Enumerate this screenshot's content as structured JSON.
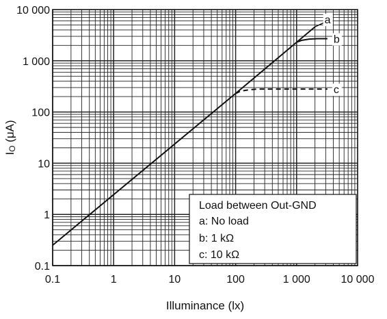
{
  "chart_data": {
    "type": "line",
    "xlabel": "Illuminance  (lx)",
    "ylabel_main": "I",
    "ylabel_sub": "O",
    "ylabel_unit": " (μA)",
    "xscale": "log",
    "yscale": "log",
    "xlim": [
      0.1,
      10000
    ],
    "ylim": [
      0.1,
      10000
    ],
    "grid": true,
    "x_tick_labels": [
      "0.1",
      "1",
      "10",
      "100",
      "1 000",
      "10 000"
    ],
    "y_tick_labels": [
      "0.1",
      "1",
      "10",
      "100",
      "1 000",
      "10 000"
    ],
    "series": [
      {
        "name": "a",
        "style": "solid",
        "x": [
          0.1,
          100,
          1000,
          2000
        ],
        "y": [
          0.25,
          230,
          2300,
          4600
        ]
      },
      {
        "name": "b",
        "style": "solid",
        "x": [
          1000,
          1200,
          1600,
          2200,
          3200
        ],
        "y": [
          2300,
          2500,
          2650,
          2700,
          2700
        ]
      },
      {
        "name": "c",
        "style": "dashed",
        "x": [
          100,
          120,
          160,
          220,
          3200
        ],
        "y": [
          230,
          255,
          270,
          280,
          280
        ]
      }
    ],
    "legend": {
      "position": "bottom-right",
      "title": "Load between Out-GND",
      "entries": [
        "a: No load",
        "b: 1 kΩ",
        "c: 10 kΩ"
      ]
    },
    "colors": {
      "line": "#111111",
      "grid": "#222222",
      "background": "#ffffff"
    }
  }
}
